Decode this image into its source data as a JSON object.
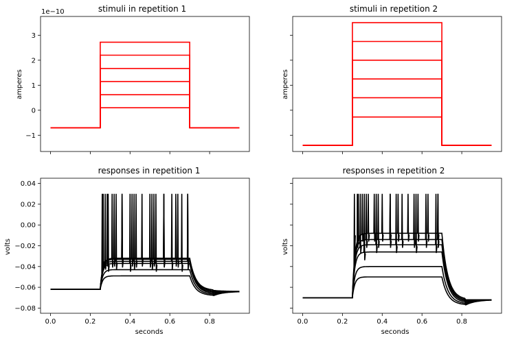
{
  "chart_data": [
    {
      "type": "line",
      "title": "stimuli in repetition 1",
      "xlabel": "",
      "ylabel": "amperes",
      "offset_label": "1e−10",
      "xlim": [
        -0.05,
        1.0
      ],
      "ylim": [
        -1.65,
        3.75
      ],
      "yticks": [
        -1,
        0,
        1,
        2,
        3
      ],
      "ytick_labels": [
        "−1",
        "0",
        "1",
        "2",
        "3"
      ],
      "xticks": [
        0.0,
        0.2,
        0.4,
        0.6,
        0.8
      ],
      "xtick_labels": [],
      "color": "#ff0000",
      "t_on": 0.25,
      "t_off": 0.7,
      "t_end": 0.95,
      "baseline": -0.7,
      "levels": [
        0.1,
        0.62,
        1.15,
        1.67,
        2.2,
        2.72
      ]
    },
    {
      "type": "line",
      "title": "stimuli in repetition 2",
      "xlabel": "",
      "ylabel": "amperes",
      "xlim": [
        -0.05,
        1.0
      ],
      "ylim": [
        -1.65,
        3.75
      ],
      "yticks": [
        -1,
        0,
        1,
        2,
        3
      ],
      "ytick_labels": [],
      "xticks": [
        0.0,
        0.2,
        0.4,
        0.6,
        0.8
      ],
      "xtick_labels": [],
      "color": "#ff0000",
      "t_on": 0.25,
      "t_off": 0.7,
      "t_end": 0.95,
      "baseline": -1.4,
      "levels": [
        -0.27,
        0.5,
        1.25,
        2.0,
        2.75,
        3.5
      ]
    },
    {
      "type": "line",
      "title": "responses in repetition 1",
      "xlabel": "seconds",
      "ylabel": "volts",
      "xlim": [
        -0.05,
        1.0
      ],
      "ylim": [
        -0.085,
        0.045
      ],
      "yticks": [
        -0.08,
        -0.06,
        -0.04,
        -0.02,
        0.0,
        0.02,
        0.04
      ],
      "ytick_labels": [
        "−0.08",
        "−0.06",
        "−0.04",
        "−0.02",
        "0.00",
        "0.02",
        "0.04"
      ],
      "xticks": [
        0.0,
        0.2,
        0.4,
        0.6,
        0.8
      ],
      "xtick_labels": [
        "0.0",
        "0.2",
        "0.4",
        "0.6",
        "0.8"
      ],
      "color": "#000000",
      "t_on": 0.25,
      "t_off": 0.7,
      "t_end": 0.95,
      "rest": -0.062,
      "end_rest": -0.064,
      "undershoot": -0.068,
      "plateaus": [
        -0.049,
        -0.043,
        -0.037,
        -0.035,
        -0.033,
        -0.032
      ],
      "spike_peak": 0.03,
      "spike_times": [
        [],
        [],
        [
          0.29,
          0.4,
          0.53,
          0.66
        ],
        [
          0.275,
          0.33,
          0.42,
          0.51,
          0.61,
          0.69
        ],
        [
          0.265,
          0.31,
          0.36,
          0.43,
          0.5,
          0.57,
          0.64
        ],
        [
          0.26,
          0.285,
          0.32,
          0.36,
          0.41,
          0.46,
          0.52,
          0.57,
          0.63,
          0.69
        ]
      ]
    },
    {
      "type": "line",
      "title": "responses in repetition 2",
      "xlabel": "seconds",
      "ylabel": "volts",
      "xlim": [
        -0.05,
        1.0
      ],
      "ylim": [
        -0.085,
        0.045
      ],
      "yticks": [
        -0.08,
        -0.06,
        -0.04,
        -0.02,
        0.0,
        0.02,
        0.04
      ],
      "ytick_labels": [],
      "xticks": [
        0.0,
        0.2,
        0.4,
        0.6,
        0.8
      ],
      "xtick_labels": [
        "0.0",
        "0.2",
        "0.4",
        "0.6",
        "0.8"
      ],
      "color": "#000000",
      "t_on": 0.25,
      "t_off": 0.7,
      "t_end": 0.95,
      "rest": -0.07,
      "end_rest": -0.072,
      "undershoot": -0.077,
      "plateaus": [
        -0.05,
        -0.04,
        -0.026,
        -0.019,
        -0.014,
        -0.008
      ],
      "spike_peak": 0.03,
      "spike_times": [
        [],
        [],
        [
          0.31
        ],
        [
          0.29,
          0.37,
          0.47,
          0.57,
          0.67
        ],
        [
          0.275,
          0.32,
          0.38,
          0.44,
          0.5,
          0.56,
          0.62,
          0.68
        ],
        [
          0.26,
          0.28,
          0.3,
          0.33,
          0.36,
          0.4,
          0.44,
          0.48,
          0.53,
          0.58,
          0.63,
          0.68
        ]
      ]
    }
  ]
}
